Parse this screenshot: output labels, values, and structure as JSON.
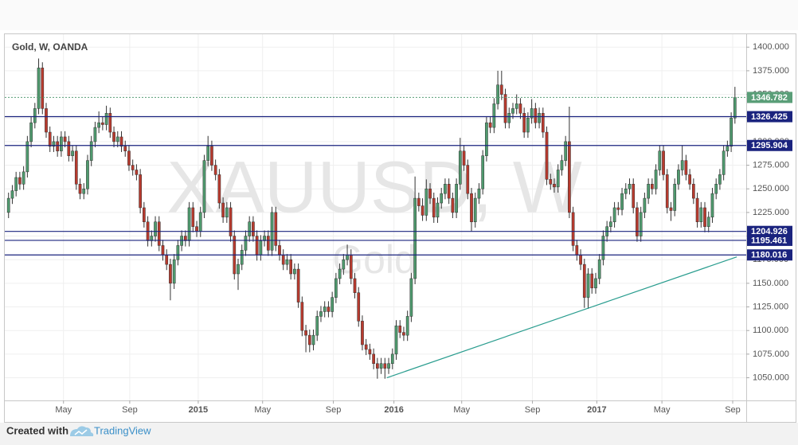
{
  "chart_data": {
    "type": "candlestick",
    "title": "Gold, W, OANDA",
    "watermark": {
      "symbol": "XAUUSD, W",
      "name": "Gold"
    },
    "up_color": "#4f9a6e",
    "down_color": "#b83a2e",
    "level_color": "#1a237e",
    "trend_color": "#2a9d8f",
    "last_color": "#5a9e78",
    "grid": true,
    "ylim": [
      1026,
      1412
    ],
    "yticks": [
      {
        "value": 1050,
        "label": "1050.000"
      },
      {
        "value": 1075,
        "label": "1075.000"
      },
      {
        "value": 1100,
        "label": "1100.000"
      },
      {
        "value": 1125,
        "label": "1125.000"
      },
      {
        "value": 1150,
        "label": "1150.000"
      },
      {
        "value": 1175,
        "label": "1175.000"
      },
      {
        "value": 1200,
        "label": "1200.000"
      },
      {
        "value": 1225,
        "label": "1225.000"
      },
      {
        "value": 1250,
        "label": "1250.000"
      },
      {
        "value": 1275,
        "label": "1275.000"
      },
      {
        "value": 1300,
        "label": "1300.000"
      },
      {
        "value": 1325,
        "label": "1325.000"
      },
      {
        "value": 1350,
        "label": "1350.000"
      },
      {
        "value": 1375,
        "label": "1375.000"
      },
      {
        "value": 1400,
        "label": "1400.000"
      }
    ],
    "xlim": [
      -1,
      196
    ],
    "xticks": [
      {
        "value": 14.6,
        "label": "May"
      },
      {
        "value": 32.2,
        "label": "Sep"
      },
      {
        "value": 50.4,
        "label": "2015"
      },
      {
        "value": 67.5,
        "label": "May"
      },
      {
        "value": 86.3,
        "label": "Sep"
      },
      {
        "value": 102.4,
        "label": "2016"
      },
      {
        "value": 120.4,
        "label": "May"
      },
      {
        "value": 139.2,
        "label": "Sep"
      },
      {
        "value": 156.3,
        "label": "2017"
      },
      {
        "value": 173.6,
        "label": "May"
      },
      {
        "value": 192.4,
        "label": "Sep"
      }
    ],
    "levels": [
      1326.425,
      1295.904,
      1204.926,
      1195.461,
      1180.016
    ],
    "trend_line": {
      "x": [
        100.5,
        193.5
      ],
      "y": [
        1050,
        1178
      ]
    },
    "open": [
      1225,
      1240,
      1248,
      1262,
      1255,
      1268,
      1300,
      1320,
      1335,
      1378,
      1335,
      1310,
      1295,
      1300,
      1290,
      1305,
      1300,
      1285,
      1290,
      1255,
      1245,
      1250,
      1280,
      1300,
      1315,
      1320,
      1318,
      1330,
      1310,
      1300,
      1305,
      1295,
      1290,
      1275,
      1270,
      1265,
      1230,
      1215,
      1195,
      1200,
      1215,
      1190,
      1180,
      1170,
      1150,
      1175,
      1190,
      1200,
      1195,
      1230,
      1210,
      1205,
      1225,
      1280,
      1295,
      1275,
      1265,
      1235,
      1220,
      1230,
      1200,
      1160,
      1170,
      1185,
      1200,
      1215,
      1200,
      1180,
      1195,
      1200,
      1185,
      1225,
      1190,
      1180,
      1170,
      1175,
      1160,
      1165,
      1130,
      1100,
      1095,
      1085,
      1095,
      1115,
      1120,
      1125,
      1120,
      1135,
      1155,
      1165,
      1175,
      1180,
      1155,
      1140,
      1110,
      1085,
      1080,
      1075,
      1065,
      1060,
      1065,
      1060,
      1065,
      1075,
      1105,
      1098,
      1095,
      1115,
      1155,
      1240,
      1232,
      1222,
      1250,
      1240,
      1220,
      1235,
      1245,
      1255,
      1240,
      1225,
      1255,
      1290,
      1275,
      1245,
      1215,
      1240,
      1250,
      1285,
      1320,
      1315,
      1340,
      1360,
      1350,
      1320,
      1330,
      1335,
      1340,
      1330,
      1310,
      1325,
      1335,
      1320,
      1330,
      1310,
      1260,
      1255,
      1252,
      1270,
      1280,
      1300,
      1225,
      1190,
      1180,
      1170,
      1135,
      1160,
      1145,
      1155,
      1175,
      1200,
      1210,
      1215,
      1230,
      1228,
      1245,
      1250,
      1255,
      1230,
      1200,
      1225,
      1240,
      1255,
      1250,
      1270,
      1290,
      1265,
      1230,
      1227,
      1255,
      1270,
      1280,
      1265,
      1255,
      1240,
      1215,
      1230,
      1210,
      1220,
      1245,
      1255,
      1265,
      1290,
      1295,
      1325
    ],
    "high": [
      1246,
      1254,
      1268,
      1268,
      1274,
      1306,
      1326,
      1341,
      1388,
      1384,
      1341,
      1316,
      1306,
      1306,
      1311,
      1311,
      1306,
      1296,
      1296,
      1261,
      1256,
      1286,
      1306,
      1321,
      1332,
      1326,
      1338,
      1336,
      1316,
      1311,
      1311,
      1301,
      1296,
      1281,
      1276,
      1271,
      1236,
      1221,
      1206,
      1221,
      1221,
      1196,
      1186,
      1176,
      1181,
      1196,
      1206,
      1206,
      1236,
      1236,
      1216,
      1231,
      1286,
      1306,
      1301,
      1281,
      1271,
      1241,
      1236,
      1236,
      1206,
      1176,
      1191,
      1206,
      1221,
      1221,
      1206,
      1201,
      1206,
      1206,
      1231,
      1231,
      1196,
      1186,
      1181,
      1181,
      1171,
      1171,
      1136,
      1106,
      1101,
      1101,
      1121,
      1126,
      1131,
      1131,
      1141,
      1161,
      1171,
      1181,
      1191,
      1186,
      1161,
      1146,
      1116,
      1091,
      1086,
      1081,
      1071,
      1071,
      1071,
      1071,
      1081,
      1111,
      1111,
      1104,
      1121,
      1161,
      1263,
      1246,
      1240,
      1260,
      1256,
      1246,
      1241,
      1251,
      1261,
      1261,
      1246,
      1261,
      1304,
      1296,
      1281,
      1251,
      1246,
      1256,
      1291,
      1326,
      1326,
      1346,
      1375,
      1375,
      1356,
      1336,
      1341,
      1350,
      1346,
      1336,
      1331,
      1345,
      1341,
      1336,
      1336,
      1316,
      1266,
      1261,
      1276,
      1286,
      1306,
      1337,
      1231,
      1196,
      1186,
      1176,
      1166,
      1166,
      1161,
      1181,
      1206,
      1216,
      1221,
      1236,
      1236,
      1251,
      1256,
      1261,
      1261,
      1236,
      1231,
      1246,
      1261,
      1261,
      1276,
      1296,
      1296,
      1271,
      1236,
      1261,
      1276,
      1296,
      1286,
      1271,
      1261,
      1246,
      1236,
      1236,
      1226,
      1251,
      1261,
      1271,
      1296,
      1301,
      1331,
      1358
    ],
    "low": [
      1219,
      1234,
      1242,
      1249,
      1249,
      1262,
      1294,
      1314,
      1329,
      1329,
      1304,
      1289,
      1289,
      1284,
      1284,
      1294,
      1279,
      1279,
      1249,
      1239,
      1239,
      1244,
      1274,
      1294,
      1309,
      1312,
      1312,
      1304,
      1294,
      1294,
      1289,
      1284,
      1269,
      1264,
      1259,
      1224,
      1209,
      1189,
      1189,
      1194,
      1184,
      1174,
      1164,
      1132,
      1144,
      1169,
      1184,
      1189,
      1189,
      1204,
      1199,
      1199,
      1219,
      1274,
      1269,
      1259,
      1229,
      1214,
      1214,
      1194,
      1154,
      1143,
      1164,
      1179,
      1194,
      1194,
      1174,
      1174,
      1189,
      1179,
      1179,
      1184,
      1174,
      1164,
      1164,
      1154,
      1154,
      1124,
      1094,
      1077,
      1077,
      1079,
      1089,
      1109,
      1114,
      1114,
      1114,
      1129,
      1149,
      1159,
      1169,
      1149,
      1134,
      1104,
      1079,
      1074,
      1069,
      1059,
      1049,
      1054,
      1049,
      1054,
      1059,
      1069,
      1092,
      1089,
      1089,
      1109,
      1149,
      1226,
      1216,
      1216,
      1234,
      1214,
      1214,
      1229,
      1239,
      1234,
      1219,
      1219,
      1249,
      1269,
      1239,
      1205,
      1209,
      1234,
      1244,
      1279,
      1309,
      1309,
      1334,
      1344,
      1314,
      1314,
      1324,
      1329,
      1324,
      1304,
      1304,
      1319,
      1314,
      1314,
      1304,
      1254,
      1249,
      1246,
      1246,
      1264,
      1274,
      1219,
      1184,
      1174,
      1164,
      1124,
      1123,
      1139,
      1139,
      1149,
      1169,
      1194,
      1204,
      1209,
      1222,
      1222,
      1239,
      1244,
      1224,
      1194,
      1194,
      1219,
      1234,
      1244,
      1244,
      1264,
      1259,
      1224,
      1216,
      1221,
      1249,
      1264,
      1259,
      1249,
      1234,
      1209,
      1209,
      1204,
      1204,
      1214,
      1239,
      1249,
      1259,
      1284,
      1289,
      1319
    ],
    "close": [
      1240,
      1248,
      1262,
      1255,
      1268,
      1300,
      1320,
      1335,
      1378,
      1335,
      1310,
      1295,
      1300,
      1290,
      1305,
      1300,
      1285,
      1290,
      1255,
      1245,
      1250,
      1280,
      1300,
      1315,
      1320,
      1318,
      1330,
      1310,
      1300,
      1305,
      1295,
      1290,
      1275,
      1270,
      1265,
      1230,
      1215,
      1195,
      1200,
      1215,
      1190,
      1180,
      1170,
      1150,
      1175,
      1190,
      1200,
      1195,
      1230,
      1210,
      1205,
      1225,
      1280,
      1295,
      1275,
      1265,
      1235,
      1220,
      1230,
      1200,
      1160,
      1170,
      1185,
      1200,
      1215,
      1200,
      1180,
      1195,
      1200,
      1185,
      1225,
      1190,
      1180,
      1170,
      1175,
      1160,
      1165,
      1130,
      1100,
      1095,
      1085,
      1095,
      1115,
      1120,
      1125,
      1120,
      1135,
      1155,
      1165,
      1175,
      1180,
      1155,
      1140,
      1110,
      1085,
      1080,
      1075,
      1065,
      1060,
      1065,
      1060,
      1065,
      1075,
      1105,
      1098,
      1095,
      1115,
      1155,
      1240,
      1232,
      1222,
      1250,
      1240,
      1220,
      1235,
      1245,
      1255,
      1240,
      1225,
      1255,
      1290,
      1275,
      1245,
      1215,
      1240,
      1250,
      1285,
      1320,
      1315,
      1340,
      1360,
      1350,
      1320,
      1330,
      1335,
      1340,
      1330,
      1310,
      1325,
      1335,
      1320,
      1330,
      1310,
      1260,
      1255,
      1252,
      1270,
      1280,
      1300,
      1225,
      1190,
      1180,
      1170,
      1135,
      1160,
      1145,
      1155,
      1175,
      1200,
      1210,
      1215,
      1230,
      1228,
      1245,
      1250,
      1255,
      1230,
      1200,
      1225,
      1240,
      1255,
      1250,
      1270,
      1290,
      1265,
      1230,
      1227,
      1255,
      1270,
      1280,
      1265,
      1255,
      1240,
      1215,
      1230,
      1210,
      1220,
      1245,
      1255,
      1265,
      1290,
      1295,
      1325,
      1346.782
    ]
  },
  "footer": {
    "created": "Created with",
    "brand": "TradingView"
  }
}
